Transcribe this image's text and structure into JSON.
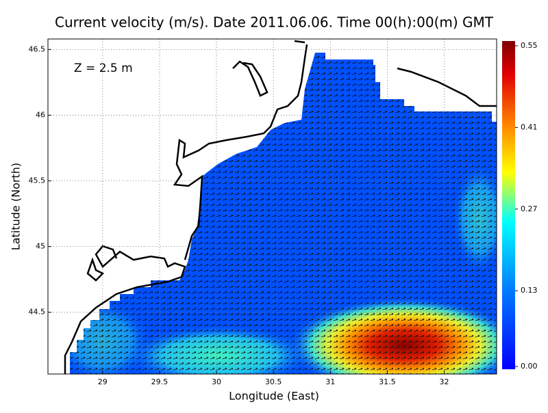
{
  "chart_data": {
    "type": "field-map",
    "title": "Current velocity (m/s). Date 2011.06.06. Time 00(h):00(m) GMT",
    "annotation": "Z = 2.5 m",
    "x_label": "Longitude (East)",
    "y_label": "Latitude (North)",
    "xlim": [
      28.52,
      32.46
    ],
    "xticks": [
      29,
      29.5,
      30,
      30.5,
      31,
      31.5,
      32
    ],
    "ylim": [
      44.03,
      46.58
    ],
    "yticks": [
      44.5,
      45,
      45.5,
      46,
      46.5
    ],
    "grid": true,
    "colorbar_lim": [
      0,
      0.55
    ],
    "colorbar_ticks": [
      {
        "value": 0,
        "label": "0.00"
      },
      0.13,
      0.27,
      0.41,
      0.55
    ]
  }
}
